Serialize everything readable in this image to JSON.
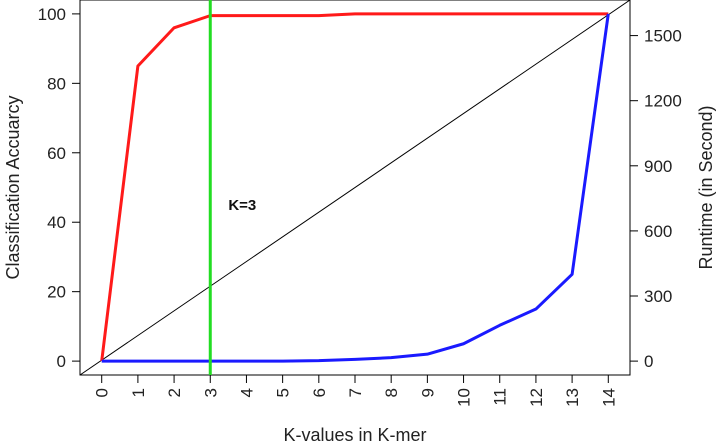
{
  "chart_data": {
    "type": "line",
    "xlabel": "K-values in K-mer",
    "ylabel_left": "Classification Accuarcy",
    "ylabel_right": "Runtime (in Second)",
    "x": [
      0,
      1,
      2,
      3,
      4,
      5,
      6,
      7,
      8,
      9,
      10,
      11,
      12,
      13,
      14
    ],
    "x_ticks": [
      "0",
      "1",
      "2",
      "3",
      "4",
      "5",
      "6",
      "7",
      "8",
      "9",
      "10",
      "11",
      "12",
      "13",
      "14"
    ],
    "xlim": [
      -0.6,
      14.6
    ],
    "ylim_left": [
      -4,
      104
    ],
    "ylim_right": [
      -64,
      1664
    ],
    "y_ticks_left": [
      "0",
      "20",
      "40",
      "60",
      "80",
      "100"
    ],
    "y_ticks_right": [
      "0",
      "300",
      "600",
      "900",
      "1200",
      "1500"
    ],
    "series": [
      {
        "axis": "left",
        "color": "#ff1a1a",
        "values": [
          0,
          85,
          96,
          99.5,
          99.5,
          99.5,
          99.5,
          100,
          100,
          100,
          100,
          100,
          100,
          100,
          100
        ]
      },
      {
        "axis": "right",
        "color": "#1a1aff",
        "values": [
          0,
          0,
          0,
          0,
          0,
          0,
          2,
          8,
          16,
          32,
          80,
          165,
          240,
          400,
          1600
        ]
      }
    ],
    "reference_line": {
      "color": "#000000"
    },
    "vline": {
      "x": 3,
      "color": "#22dd22"
    },
    "annotation": {
      "text": "K=3",
      "x": 3.5,
      "y": 45
    }
  }
}
